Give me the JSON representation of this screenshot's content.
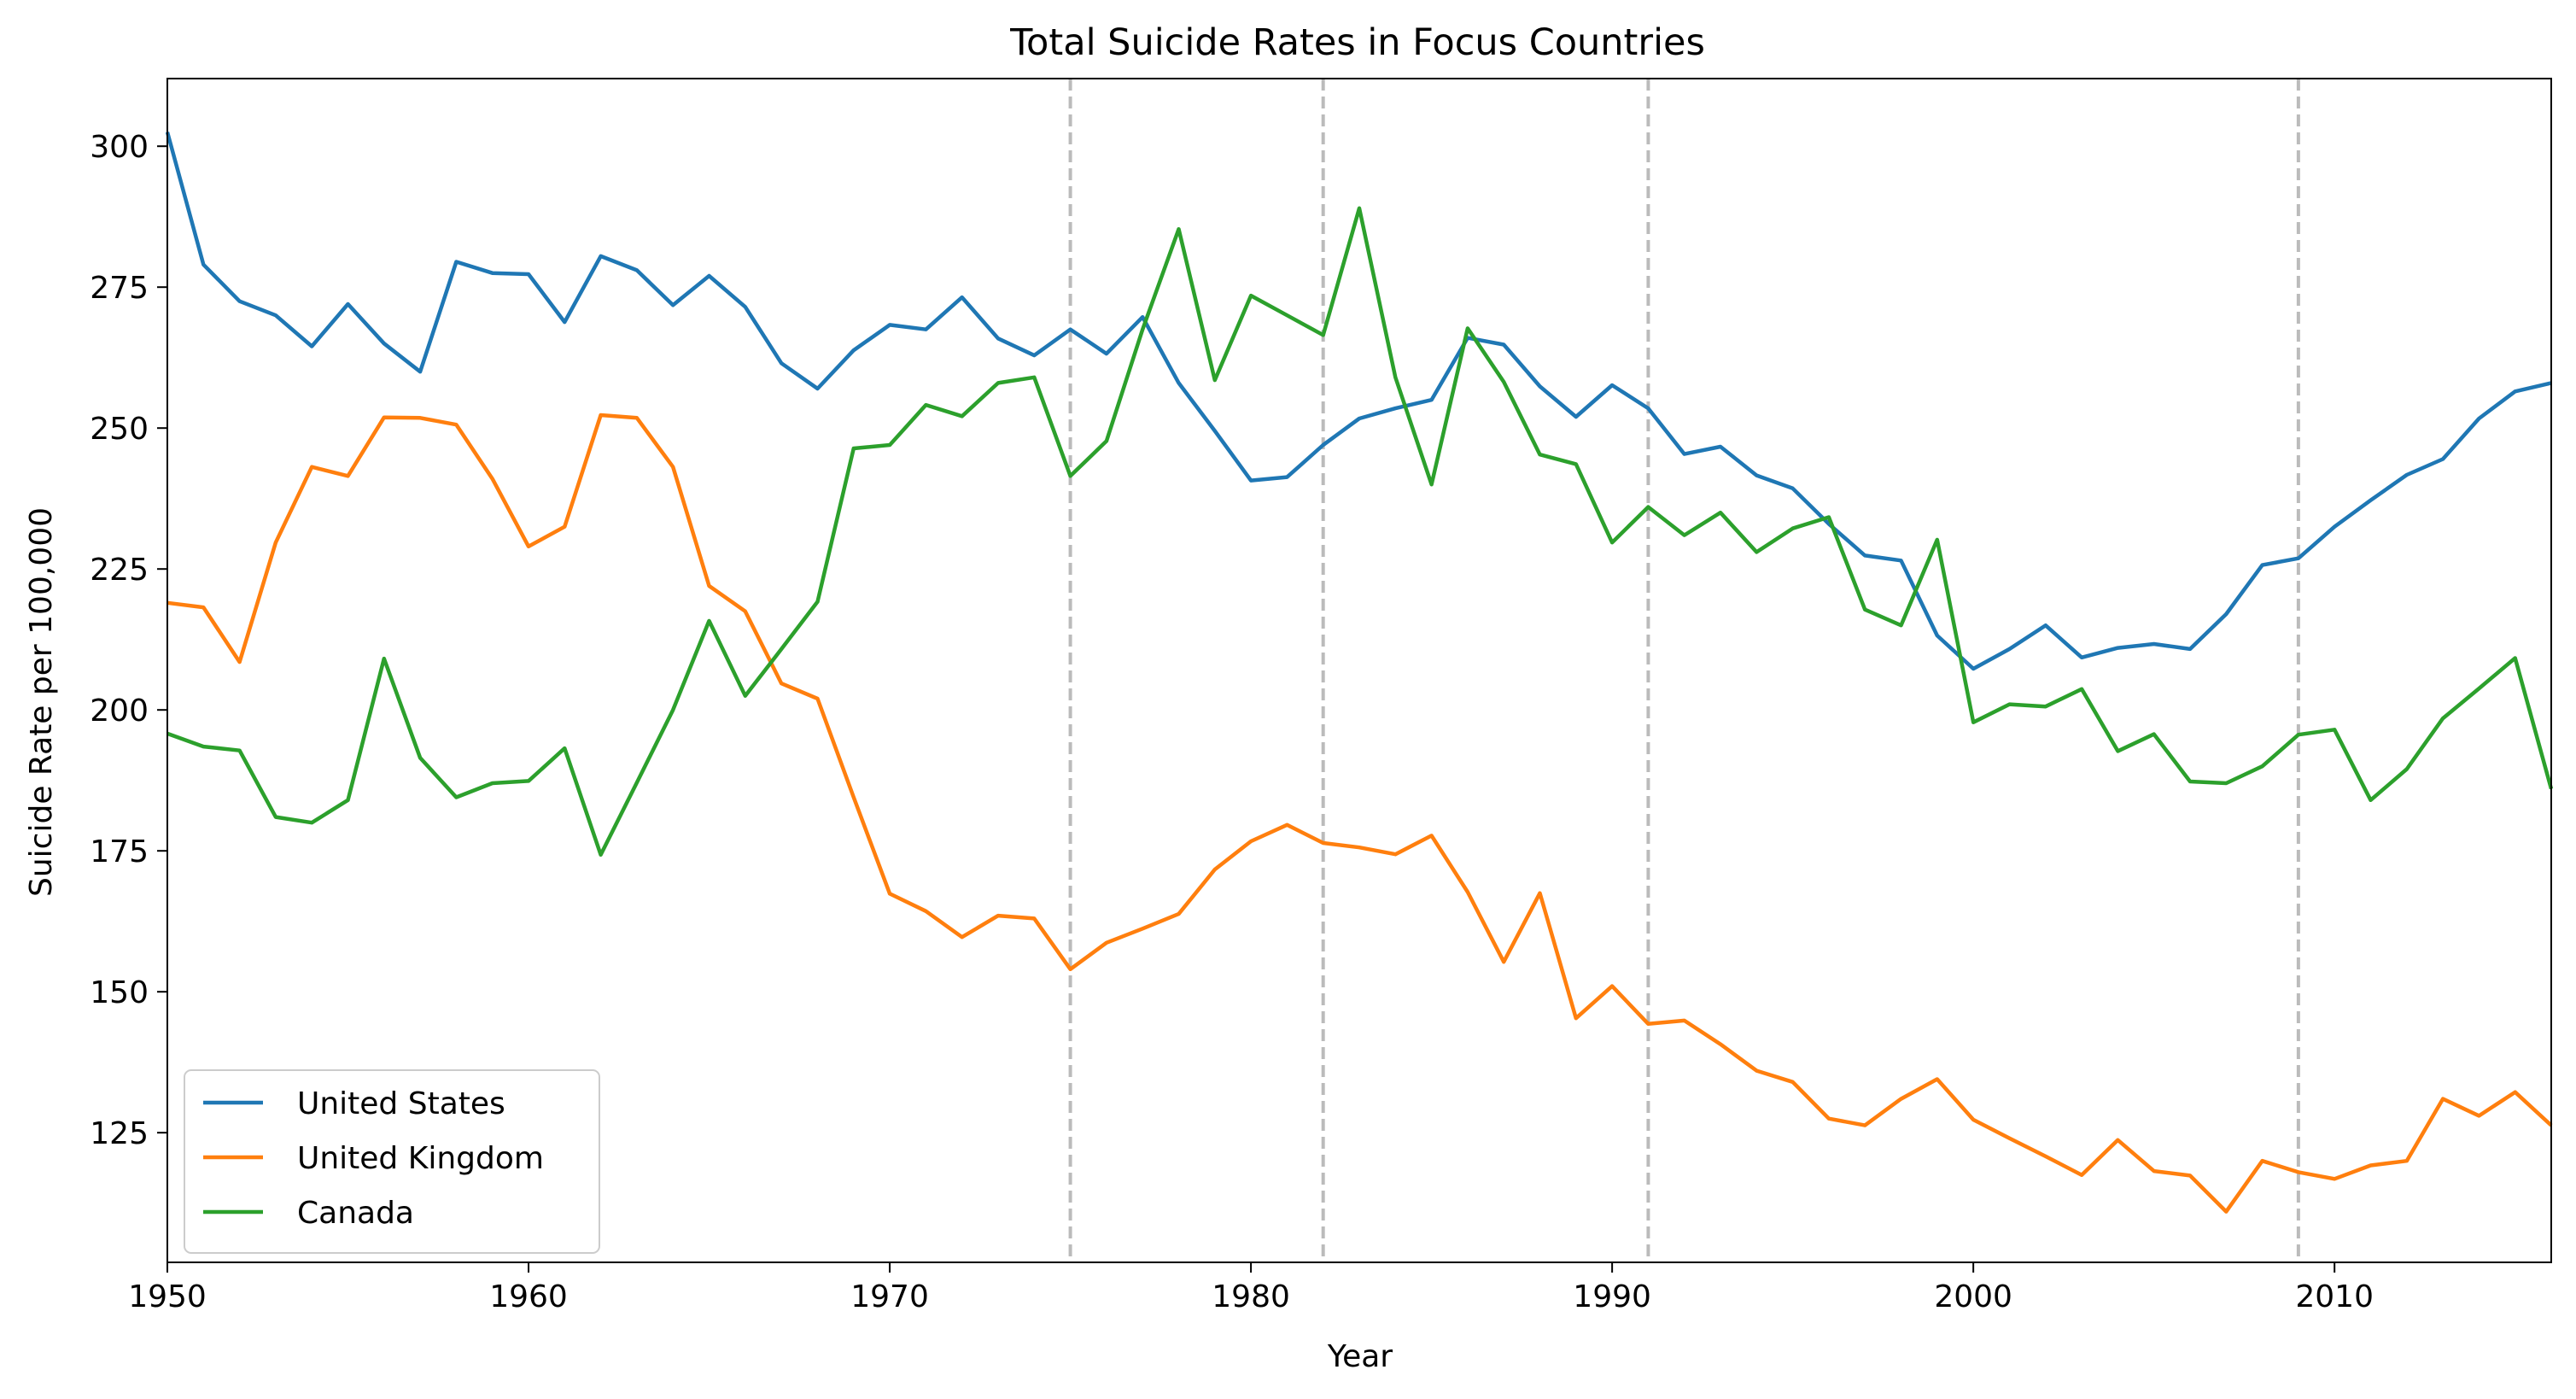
{
  "chart_data": {
    "type": "line",
    "title": "Total Suicide Rates in Focus Countries",
    "xlabel": "Year",
    "ylabel": "Suicide Rate per 100,000",
    "xlim": [
      1950,
      2016
    ],
    "ylim": [
      102,
      312
    ],
    "xticks": [
      1950,
      1960,
      1970,
      1980,
      1990,
      2000,
      2010
    ],
    "yticks": [
      125,
      150,
      175,
      200,
      225,
      250,
      275,
      300
    ],
    "grid": false,
    "legend_position": "lower-left",
    "reference_lines": {
      "orientation": "vertical",
      "style": "dashed",
      "color": "#bbbbbb",
      "x": [
        1975,
        1982,
        1991,
        2009
      ]
    },
    "x": [
      1950,
      1951,
      1952,
      1953,
      1954,
      1955,
      1956,
      1957,
      1958,
      1959,
      1960,
      1961,
      1962,
      1963,
      1964,
      1965,
      1966,
      1967,
      1968,
      1969,
      1970,
      1971,
      1972,
      1973,
      1974,
      1975,
      1976,
      1977,
      1978,
      1979,
      1980,
      1981,
      1982,
      1983,
      1984,
      1985,
      1986,
      1987,
      1988,
      1989,
      1990,
      1991,
      1992,
      1993,
      1994,
      1995,
      1996,
      1997,
      1998,
      1999,
      2000,
      2001,
      2002,
      2003,
      2004,
      2005,
      2006,
      2007,
      2008,
      2009,
      2010,
      2011,
      2012,
      2013,
      2014,
      2015,
      2016
    ],
    "series": [
      {
        "name": "United States",
        "color": "#1f77b4",
        "values": [
          302.5,
          279,
          272.5,
          270,
          264.5,
          272,
          265,
          260,
          279.5,
          277.5,
          277.3,
          268.8,
          280.5,
          278,
          271.8,
          277,
          271.5,
          261.5,
          257,
          263.8,
          268.3,
          267.5,
          273.2,
          265.9,
          262.9,
          267.5,
          263.2,
          269.7,
          258,
          249.5,
          240.7,
          241.3,
          247,
          251.7,
          253.5,
          255,
          266,
          264.8,
          257.4,
          252,
          257.6,
          253.5,
          245.4,
          246.7,
          241.6,
          239.3,
          233,
          227.4,
          226.5,
          213.2,
          207.3,
          210.8,
          215,
          209.3,
          211,
          211.7,
          210.8,
          217,
          225.7,
          226.9,
          232.5,
          237.2,
          241.7,
          244.5,
          251.7,
          256.5,
          258
        ]
      },
      {
        "name": "United Kingdom",
        "color": "#ff7f0e",
        "values": [
          219,
          218.2,
          208.5,
          229.7,
          243.1,
          241.5,
          251.9,
          251.8,
          250.6,
          241,
          229,
          232.5,
          252.3,
          251.8,
          243.1,
          222,
          217.5,
          204.7,
          202,
          184.5,
          167.4,
          164.3,
          159.7,
          163.5,
          163,
          154,
          158.7,
          161.2,
          163.8,
          171.7,
          176.7,
          179.6,
          176.4,
          175.6,
          174.4,
          177.7,
          167.7,
          155.3,
          167.5,
          145.3,
          151,
          144.3,
          144.9,
          140.7,
          136,
          134,
          127.5,
          126.3,
          131,
          134.5,
          127.3,
          124,
          120.8,
          117.5,
          123.7,
          118.2,
          117.4,
          111,
          120,
          118,
          116.8,
          119.2,
          120,
          131,
          128,
          132.2,
          126.3
        ]
      },
      {
        "name": "Canada",
        "color": "#2ca02c",
        "values": [
          195.8,
          193.5,
          192.8,
          181,
          180,
          184,
          209.1,
          191.5,
          184.5,
          187,
          187.4,
          193.2,
          174.3,
          187.1,
          200,
          215.8,
          202.5,
          210.8,
          219.2,
          246.4,
          247,
          254.1,
          252.1,
          258,
          259,
          241.5,
          247.7,
          267.5,
          285.3,
          258.5,
          273.5,
          270,
          266.5,
          289,
          259,
          240,
          267.7,
          258.2,
          245.3,
          243.6,
          229.7,
          236,
          231,
          235,
          228,
          232.2,
          234.2,
          217.8,
          215,
          230.2,
          197.8,
          201,
          200.6,
          203.7,
          192.7,
          195.7,
          187.3,
          187,
          190,
          195.6,
          196.5,
          184,
          189.5,
          198.5,
          203.8,
          209.2,
          186
        ]
      }
    ]
  }
}
